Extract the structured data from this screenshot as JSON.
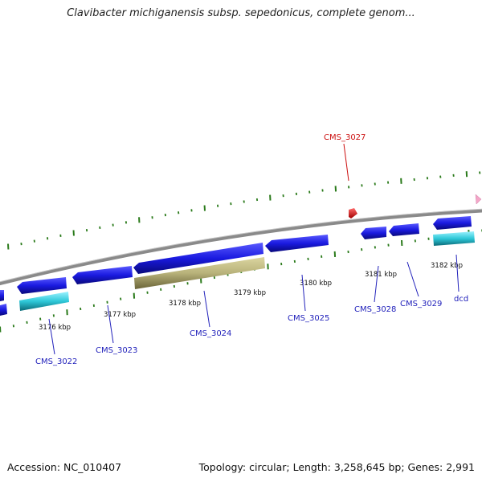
{
  "title": "Clavibacter michiganensis subsp. sepedonicus, complete genom...",
  "footer": {
    "accession": "Accession: NC_010407",
    "topology": "Topology: circular; Length: 3,258,645 bp; Genes: 2,991"
  },
  "colors": {
    "gene_blue": "#1a1adc",
    "gene_cyan": "#2ec8d8",
    "gene_olive": "#b8b27a",
    "gene_red": "#e01010",
    "gene_pink": "#f4a6c8",
    "tick_green": "#2a7a1a",
    "backbone": "#8a8a8a",
    "label_blue": "#2222bb",
    "label_red": "#cc1111"
  },
  "scale_labels": [
    "3176 kbp",
    "3177 kbp",
    "3178 kbp",
    "3179 kbp",
    "3180 kbp",
    "3181 kbp",
    "3182 kbp"
  ],
  "gene_labels": {
    "cms3022": "CMS_3022",
    "cms3023": "CMS_3023",
    "cms3024": "CMS_3024",
    "cms3025": "CMS_3025",
    "cms3027": "CMS_3027",
    "cms3028": "CMS_3028",
    "cms3029": "CMS_3029",
    "dcd": "dcd"
  }
}
